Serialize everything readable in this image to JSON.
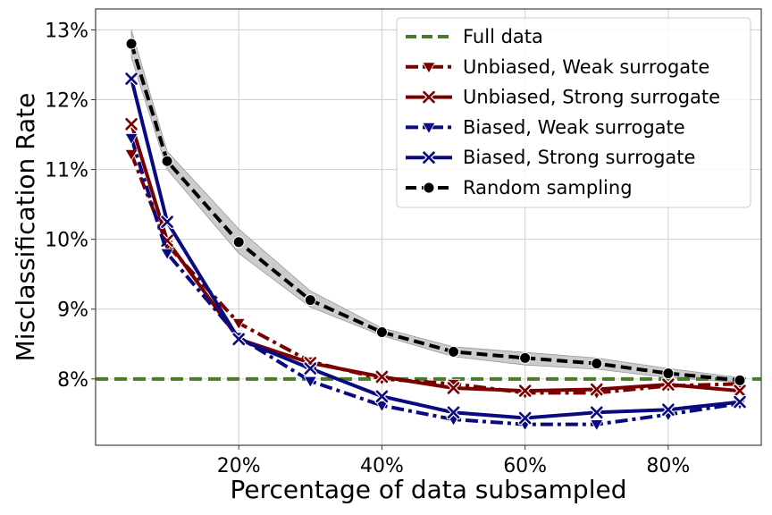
{
  "chart_data": {
    "type": "line",
    "xlabel": "Percentage of data subsampled",
    "ylabel": "Misclassification Rate",
    "x_ticks": [
      20,
      40,
      60,
      80
    ],
    "x_tick_labels": [
      "20%",
      "40%",
      "60%",
      "80%"
    ],
    "y_ticks": [
      8,
      9,
      10,
      11,
      12,
      13
    ],
    "y_tick_labels": [
      "8%",
      "9%",
      "10%",
      "11%",
      "12%",
      "13%"
    ],
    "xlim": [
      0,
      93
    ],
    "ylim": [
      7.05,
      13.3
    ],
    "grid": true,
    "legend_position": "top-right",
    "reference_line": {
      "name": "Full data",
      "y": 8.0,
      "color": "#4a7a2a"
    },
    "series": [
      {
        "name": "Unbiased, Weak surrogate",
        "color": "#7a0000",
        "dash": "dashdot",
        "marker": "triangle-down",
        "x": [
          5,
          10,
          20,
          30,
          40,
          50,
          60,
          70,
          80,
          90
        ],
        "y": [
          11.22,
          9.92,
          8.8,
          8.25,
          8.0,
          7.93,
          7.8,
          7.8,
          7.9,
          7.93
        ]
      },
      {
        "name": "Unbiased, Strong surrogate",
        "color": "#7a0000",
        "dash": "solid",
        "marker": "x",
        "x": [
          5,
          10,
          20,
          30,
          40,
          50,
          60,
          70,
          80,
          90
        ],
        "y": [
          11.65,
          9.98,
          8.57,
          8.23,
          8.03,
          7.87,
          7.83,
          7.85,
          7.92,
          7.83
        ]
      },
      {
        "name": "Biased, Weak surrogate",
        "color": "#0a0a80",
        "dash": "dashdot",
        "marker": "triangle-down",
        "x": [
          5,
          10,
          20,
          30,
          40,
          50,
          60,
          70,
          80,
          90
        ],
        "y": [
          11.45,
          9.8,
          8.6,
          7.97,
          7.62,
          7.42,
          7.35,
          7.35,
          7.49,
          7.65
        ]
      },
      {
        "name": "Biased, Strong surrogate",
        "color": "#0a0a80",
        "dash": "solid",
        "marker": "x",
        "x": [
          5,
          10,
          20,
          30,
          40,
          50,
          60,
          70,
          80,
          90
        ],
        "y": [
          12.3,
          10.25,
          8.57,
          8.15,
          7.75,
          7.52,
          7.44,
          7.52,
          7.56,
          7.67
        ]
      },
      {
        "name": "Random sampling",
        "color": "#000000",
        "dash": "dashed",
        "marker": "circle",
        "x": [
          5,
          10,
          20,
          30,
          40,
          50,
          60,
          70,
          80,
          90
        ],
        "y": [
          12.8,
          11.12,
          9.96,
          9.13,
          8.67,
          8.39,
          8.3,
          8.22,
          8.08,
          7.98
        ],
        "band_lower": [
          12.6,
          11.0,
          9.8,
          9.03,
          8.62,
          8.32,
          8.2,
          8.14,
          8.02,
          7.95
        ],
        "band_upper": [
          13.0,
          11.26,
          10.15,
          9.26,
          8.73,
          8.46,
          8.38,
          8.3,
          8.15,
          8.02
        ]
      }
    ]
  }
}
